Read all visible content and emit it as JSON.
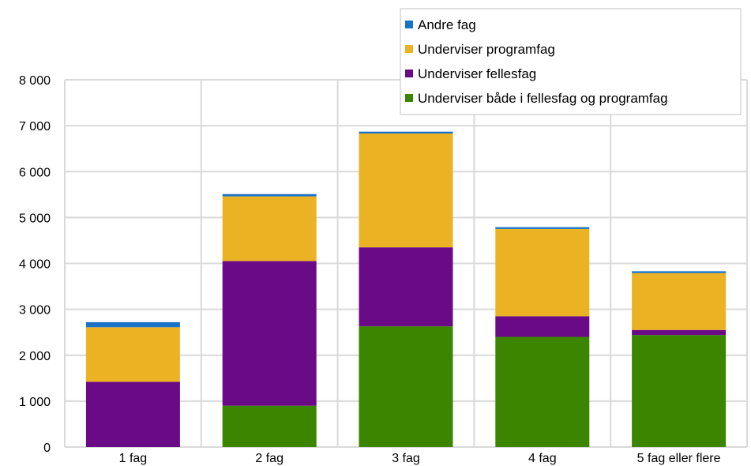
{
  "chart_data": {
    "type": "bar",
    "stacked": true,
    "title": "",
    "xlabel": "",
    "ylabel": "",
    "ylim": [
      0,
      8000
    ],
    "yticks": [
      0,
      1000,
      2000,
      3000,
      4000,
      5000,
      6000,
      7000,
      8000
    ],
    "ytick_labels": [
      "0",
      "1 000",
      "2 000",
      "3 000",
      "4 000",
      "5 000",
      "6 000",
      "7 000",
      "8 000"
    ],
    "grid": true,
    "legend_position": "top-right",
    "categories": [
      "1 fag",
      "2 fag",
      "3 fag",
      "4 fag",
      "5 fag eller flere"
    ],
    "series": [
      {
        "name": "Underviser både i fellesfag og programfag",
        "color": "#3c8500",
        "values": [
          0,
          900,
          2630,
          2400,
          2440
        ]
      },
      {
        "name": "Underviser fellesfag",
        "color": "#6a0a87",
        "values": [
          1420,
          3150,
          1720,
          450,
          110
        ]
      },
      {
        "name": "Underviser programfag",
        "color": "#ebb223",
        "values": [
          1190,
          1410,
          2480,
          1900,
          1240
        ]
      },
      {
        "name": "Andre fag",
        "color": "#1a73c6",
        "values": [
          110,
          50,
          40,
          40,
          40
        ]
      }
    ],
    "legend_order": [
      "Andre fag",
      "Underviser programfag",
      "Underviser fellesfag",
      "Underviser både i fellesfag og programfag"
    ]
  }
}
